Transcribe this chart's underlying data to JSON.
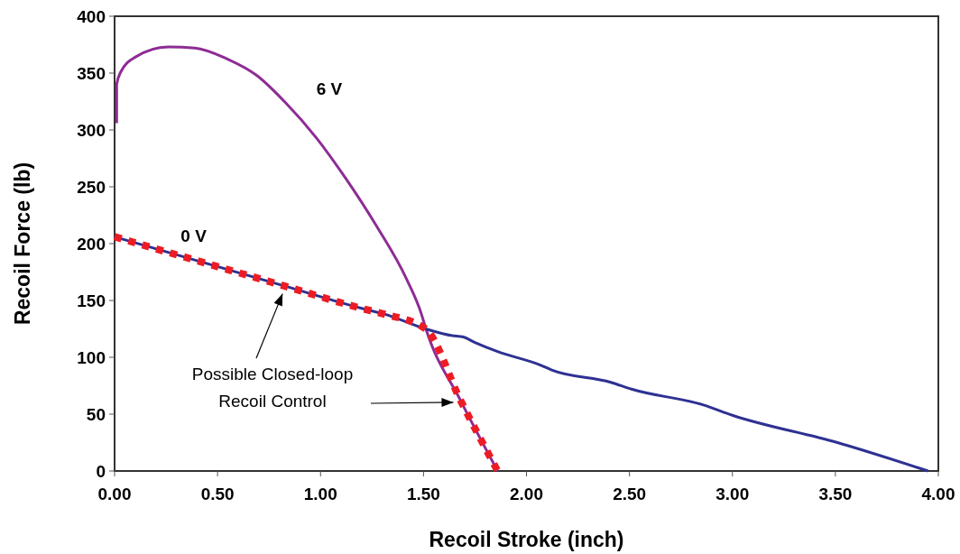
{
  "chart_data": {
    "type": "line",
    "xlabel": "Recoil Stroke (inch)",
    "ylabel": "Recoil Force (lb)",
    "xlim": [
      0,
      4
    ],
    "ylim": [
      0,
      400
    ],
    "xticks": [
      {
        "value": 0,
        "label": "0.00"
      },
      {
        "value": 0.5,
        "label": "0.50"
      },
      {
        "value": 1,
        "label": "1.00"
      },
      {
        "value": 1.5,
        "label": "1.50"
      },
      {
        "value": 2,
        "label": "2.00"
      },
      {
        "value": 2.5,
        "label": "2.50"
      },
      {
        "value": 3,
        "label": "3.00"
      },
      {
        "value": 3.5,
        "label": "3.50"
      },
      {
        "value": 4,
        "label": "4.00"
      }
    ],
    "yticks": [
      0,
      50,
      100,
      150,
      200,
      250,
      300,
      350,
      400
    ],
    "grid": false,
    "marker": "none",
    "annotations": [
      "Possible Closed-loop Recoil Control"
    ],
    "series": [
      {
        "name": "6 V",
        "color": "#8e2c95",
        "line_style": "solid",
        "x": [
          0.01,
          0.01,
          0.03,
          0.1,
          0.26,
          0.39,
          0.54,
          0.69,
          0.83,
          0.98,
          1.12,
          1.27,
          1.42,
          1.49,
          1.51,
          1.68,
          1.86
        ],
        "values": [
          306,
          340,
          351,
          364,
          373,
          372,
          363,
          348,
          324,
          293,
          258,
          216,
          168,
          138,
          126,
          62,
          0
        ]
      },
      {
        "name": "0 V",
        "color": "#2e3192",
        "line_style": "solid",
        "x": [
          0,
          0.4,
          0.82,
          1.2,
          1.31,
          1.51,
          1.64,
          1.69,
          1.75,
          1.86,
          2.07,
          2.12,
          2.41,
          2.51,
          2.86,
          3.0,
          3.51,
          3.95
        ],
        "values": [
          206,
          185,
          163,
          143,
          138,
          125,
          119,
          118,
          113,
          105,
          93,
          89,
          78,
          72,
          58,
          49,
          25,
          0
        ]
      },
      {
        "color": "#ed1c24",
        "line_style": "dotted",
        "x": [
          0,
          0.4,
          0.82,
          1.2,
          1.31,
          1.51,
          1.68,
          1.86
        ],
        "values": [
          206,
          185,
          163,
          143,
          138,
          125,
          62,
          0
        ]
      }
    ]
  }
}
